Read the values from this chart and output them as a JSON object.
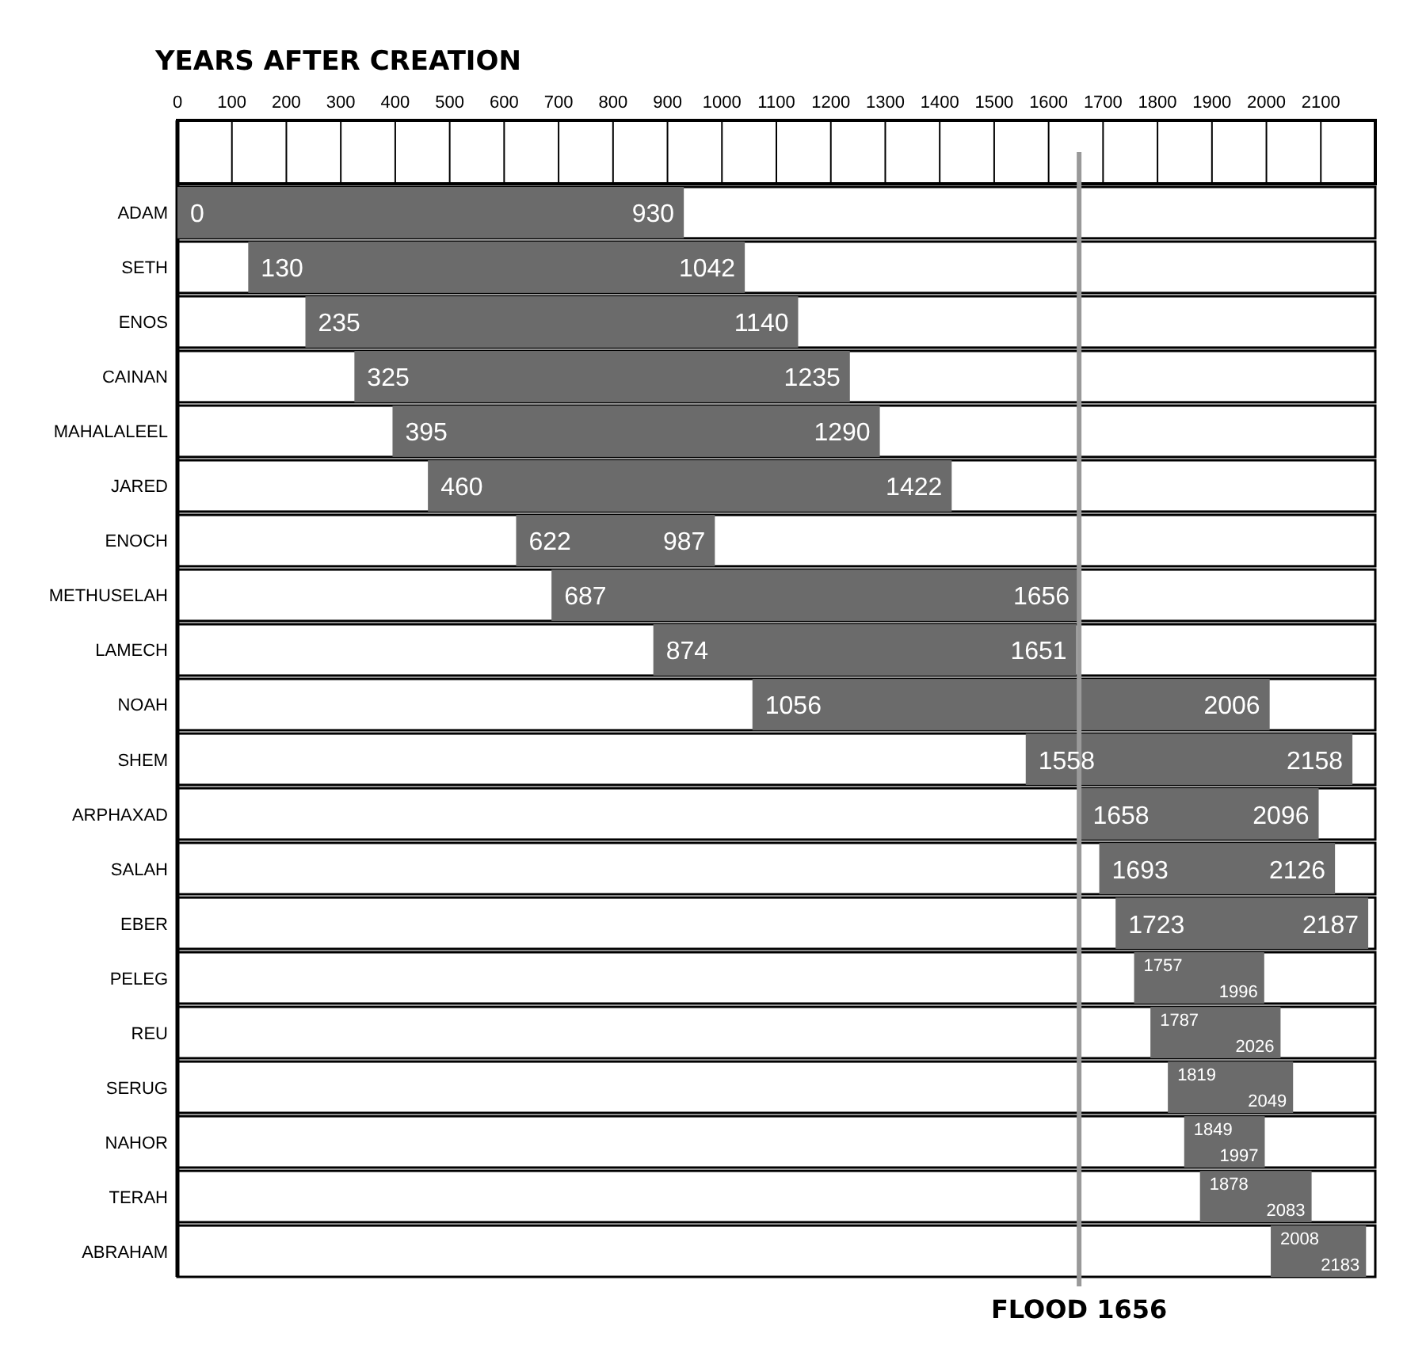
{
  "chart_data": {
    "type": "bar",
    "orientation": "horizontal",
    "xlabel": "YEARS AFTER CREATION",
    "categories": [
      "ADAM",
      "SETH",
      "ENOS",
      "CAINAN",
      "MAHALALEEL",
      "JARED",
      "ENOCH",
      "METHUSELAH",
      "LAMECH",
      "NOAH",
      "SHEM",
      "ARPHAXAD",
      "SALAH",
      "EBER",
      "PELEG",
      "REU",
      "SERUG",
      "NAHOR",
      "TERAH",
      "ABRAHAM"
    ],
    "base": [
      0,
      130,
      235,
      325,
      395,
      460,
      622,
      687,
      874,
      1056,
      1558,
      1658,
      1693,
      1723,
      1757,
      1787,
      1819,
      1849,
      1878,
      2008
    ],
    "values": [
      930,
      912,
      905,
      910,
      895,
      962,
      365,
      969,
      777,
      950,
      600,
      438,
      433,
      464,
      239,
      239,
      230,
      148,
      205,
      175
    ],
    "color": "#6b6b6b",
    "xlim": [
      0,
      2200
    ],
    "xticks": [
      0,
      100,
      200,
      300,
      400,
      500,
      600,
      700,
      800,
      900,
      1000,
      1100,
      1200,
      1300,
      1400,
      1500,
      1600,
      1700,
      1800,
      1900,
      2000,
      2100
    ],
    "ref_lines": [
      {
        "axis": "x",
        "value": 1656,
        "label": "FLOOD 1656",
        "color": "#999999"
      }
    ],
    "annotations": [
      {
        "text": "0",
        "x": 0,
        "y": "ADAM"
      },
      {
        "text": "930",
        "x": 930,
        "y": "ADAM"
      },
      {
        "text": "130",
        "x": 130,
        "y": "SETH"
      },
      {
        "text": "1042",
        "x": 1042,
        "y": "SETH"
      },
      {
        "text": "235",
        "x": 235,
        "y": "ENOS"
      },
      {
        "text": "1140",
        "x": 1140,
        "y": "ENOS"
      },
      {
        "text": "325",
        "x": 325,
        "y": "CAINAN"
      },
      {
        "text": "1235",
        "x": 1235,
        "y": "CAINAN"
      },
      {
        "text": "395",
        "x": 395,
        "y": "MAHALALEEL"
      },
      {
        "text": "1290",
        "x": 1290,
        "y": "MAHALALEEL"
      },
      {
        "text": "460",
        "x": 460,
        "y": "JARED"
      },
      {
        "text": "1422",
        "x": 1422,
        "y": "JARED"
      },
      {
        "text": "622",
        "x": 622,
        "y": "ENOCH"
      },
      {
        "text": "987",
        "x": 987,
        "y": "ENOCH"
      },
      {
        "text": "687",
        "x": 687,
        "y": "METHUSELAH"
      },
      {
        "text": "1656",
        "x": 1656,
        "y": "METHUSELAH"
      },
      {
        "text": "874",
        "x": 874,
        "y": "LAMECH"
      },
      {
        "text": "1651",
        "x": 1651,
        "y": "LAMECH"
      },
      {
        "text": "1056",
        "x": 1056,
        "y": "NOAH"
      },
      {
        "text": "2006",
        "x": 2006,
        "y": "NOAH"
      },
      {
        "text": "1558",
        "x": 1558,
        "y": "SHEM"
      },
      {
        "text": "2158",
        "x": 2158,
        "y": "SHEM"
      },
      {
        "text": "1658",
        "x": 1658,
        "y": "ARPHAXAD"
      },
      {
        "text": "2096",
        "x": 2096,
        "y": "ARPHAXAD"
      },
      {
        "text": "1693",
        "x": 1693,
        "y": "SALAH"
      },
      {
        "text": "2126",
        "x": 2126,
        "y": "SALAH"
      },
      {
        "text": "1723",
        "x": 1723,
        "y": "EBER"
      },
      {
        "text": "2187",
        "x": 2187,
        "y": "EBER"
      },
      {
        "text": "1757",
        "x": 1757,
        "y": "PELEG"
      },
      {
        "text": "1996",
        "x": 1996,
        "y": "PELEG"
      },
      {
        "text": "1787",
        "x": 1787,
        "y": "REU"
      },
      {
        "text": "2026",
        "x": 2026,
        "y": "REU"
      },
      {
        "text": "1819",
        "x": 1819,
        "y": "SERUG"
      },
      {
        "text": "2049",
        "x": 2049,
        "y": "SERUG"
      },
      {
        "text": "1849",
        "x": 1849,
        "y": "NAHOR"
      },
      {
        "text": "1997",
        "x": 1997,
        "y": "NAHOR"
      },
      {
        "text": "1878",
        "x": 1878,
        "y": "TERAH"
      },
      {
        "text": "2083",
        "x": 2083,
        "y": "TERAH"
      },
      {
        "text": "2008",
        "x": 2008,
        "y": "ABRAHAM"
      },
      {
        "text": "2183",
        "x": 2183,
        "y": "ABRAHAM"
      }
    ]
  }
}
